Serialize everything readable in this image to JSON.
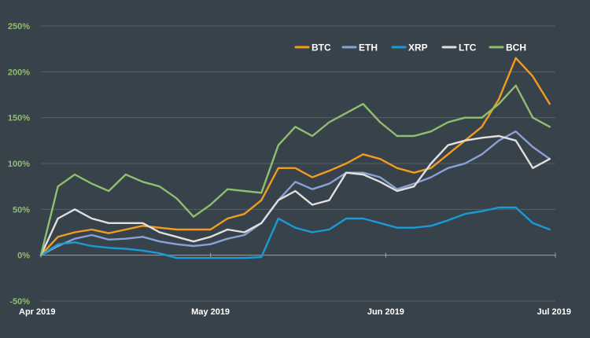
{
  "chart_data": {
    "type": "line",
    "title": "",
    "xlabel": "",
    "ylabel": "",
    "y_unit": "%",
    "ylim": [
      -50,
      250
    ],
    "yticks": [
      -50,
      0,
      50,
      100,
      150,
      200,
      250
    ],
    "ytick_labels": [
      "-50%",
      "0%",
      "50%",
      "100%",
      "150%",
      "200%",
      "250%"
    ],
    "xlim": [
      "2019-04-01",
      "2019-07-01"
    ],
    "xticks": [
      "2019-04-01",
      "2019-05-01",
      "2019-06-01",
      "2019-07-01"
    ],
    "xtick_labels": [
      "Apr 2019",
      "May 2019",
      "Jun 2019",
      "Jul 2019"
    ],
    "grid": true,
    "legend_position": "top-right",
    "x": [
      "2019-04-01",
      "2019-04-04",
      "2019-04-07",
      "2019-04-10",
      "2019-04-13",
      "2019-04-16",
      "2019-04-19",
      "2019-04-22",
      "2019-04-25",
      "2019-04-28",
      "2019-05-01",
      "2019-05-04",
      "2019-05-07",
      "2019-05-10",
      "2019-05-13",
      "2019-05-16",
      "2019-05-19",
      "2019-05-22",
      "2019-05-25",
      "2019-05-28",
      "2019-05-31",
      "2019-06-03",
      "2019-06-06",
      "2019-06-09",
      "2019-06-12",
      "2019-06-15",
      "2019-06-18",
      "2019-06-21",
      "2019-06-24",
      "2019-06-27",
      "2019-06-30"
    ],
    "series": [
      {
        "name": "BTC",
        "color": "#f29c1f",
        "values": [
          0,
          20,
          25,
          28,
          24,
          28,
          32,
          30,
          28,
          28,
          28,
          40,
          45,
          60,
          95,
          95,
          85,
          92,
          100,
          110,
          105,
          95,
          90,
          95,
          110,
          125,
          140,
          170,
          215,
          195,
          165
        ]
      },
      {
        "name": "ETH",
        "color": "#8aa1d6",
        "values": [
          0,
          10,
          18,
          22,
          17,
          18,
          20,
          15,
          12,
          10,
          12,
          18,
          22,
          35,
          60,
          80,
          72,
          78,
          90,
          90,
          85,
          72,
          78,
          85,
          95,
          100,
          110,
          125,
          135,
          118,
          105
        ]
      },
      {
        "name": "XRP",
        "color": "#1a9ad6",
        "values": [
          0,
          12,
          14,
          10,
          8,
          7,
          5,
          2,
          -3,
          -3,
          -3,
          -3,
          -3,
          -2,
          40,
          30,
          25,
          28,
          40,
          40,
          35,
          30,
          30,
          32,
          38,
          45,
          48,
          52,
          52,
          35,
          28
        ]
      },
      {
        "name": "LTC",
        "color": "#e0e0e0",
        "values": [
          0,
          40,
          50,
          40,
          35,
          35,
          35,
          25,
          20,
          15,
          20,
          28,
          25,
          35,
          60,
          70,
          55,
          60,
          90,
          88,
          80,
          70,
          75,
          100,
          120,
          125,
          128,
          130,
          125,
          95,
          105
        ]
      },
      {
        "name": "BCH",
        "color": "#8fbf6e",
        "values": [
          0,
          75,
          88,
          78,
          70,
          88,
          80,
          75,
          62,
          42,
          55,
          72,
          70,
          68,
          120,
          140,
          130,
          145,
          155,
          165,
          145,
          130,
          130,
          135,
          145,
          150,
          150,
          165,
          185,
          150,
          140
        ]
      }
    ]
  }
}
